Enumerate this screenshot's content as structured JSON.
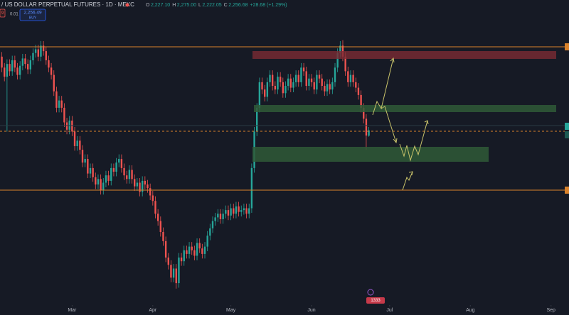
{
  "header": {
    "title": "/ US DOLLAR PERPETUAL FUTURES · 1D · MEXC",
    "ohlc": [
      {
        "label": "O",
        "value": "2,227.10"
      },
      {
        "label": "H",
        "value": "2,275.00"
      },
      {
        "label": "L",
        "value": "2,222.05"
      },
      {
        "label": "C",
        "value": "2,256.68"
      }
    ],
    "change": "+28.68 (+1.29%)"
  },
  "trade_panel": {
    "sell_badge": "9",
    "quantity": "0.01",
    "buy_price": "2,256.49",
    "buy_label": "BUY"
  },
  "footer_badge": "1333",
  "chart_data": {
    "type": "candlestick",
    "up_color": "#26a69a",
    "down_color": "#ef5350",
    "x": [
      1,
      2,
      3,
      4,
      5,
      6,
      7,
      8,
      9,
      10,
      11,
      12,
      13,
      14,
      15,
      16,
      17,
      18,
      19,
      20,
      21,
      22,
      23,
      24,
      25,
      26,
      27,
      28,
      29,
      30,
      31,
      32,
      33,
      34,
      35,
      36,
      37,
      38,
      39,
      40,
      41,
      42,
      43,
      44,
      45,
      46,
      47,
      48,
      49,
      50,
      51,
      52,
      53,
      54,
      55,
      56,
      57,
      58,
      59,
      60,
      61,
      62,
      63,
      64,
      65,
      66,
      67,
      68,
      69,
      70,
      71,
      72,
      73,
      74,
      75,
      76,
      77,
      78,
      79,
      80,
      81,
      82,
      83,
      84,
      85,
      86,
      87,
      88,
      89,
      90,
      91,
      92,
      93,
      94,
      95,
      96,
      97,
      98,
      99,
      100,
      101,
      102,
      103,
      104,
      105,
      106,
      107,
      108,
      109,
      110,
      111,
      112,
      113,
      114,
      115,
      116,
      117,
      118,
      119,
      120,
      121,
      122,
      123,
      124,
      125,
      126,
      127,
      128,
      129,
      130,
      131,
      132,
      133,
      134,
      135,
      136,
      137,
      138,
      139,
      140,
      141,
      142
    ],
    "open": [
      2660,
      2600,
      2550,
      2620,
      2580,
      2640,
      2600,
      2560,
      2610,
      2650,
      2620,
      2590,
      2640,
      2680,
      2700,
      2660,
      2720,
      2690,
      2640,
      2600,
      2560,
      2470,
      2380,
      2420,
      2380,
      2300,
      2260,
      2310,
      2250,
      2170,
      2200,
      2150,
      2080,
      2100,
      2020,
      2050,
      2000,
      1960,
      1990,
      1930,
      1970,
      2010,
      1980,
      2050,
      2030,
      2080,
      2100,
      2050,
      2010,
      1990,
      2040,
      1990,
      1950,
      1970,
      1920,
      1980,
      1960,
      1940,
      1900,
      1870,
      1800,
      1760,
      1700,
      1650,
      1560,
      1520,
      1450,
      1500,
      1420,
      1560,
      1540,
      1600,
      1580,
      1620,
      1600,
      1570,
      1640,
      1610,
      1580,
      1620,
      1680,
      1720,
      1760,
      1780,
      1800,
      1770,
      1800,
      1820,
      1790,
      1830,
      1800,
      1840,
      1810,
      1820,
      1830,
      1800,
      1830,
      2050,
      2250,
      2380,
      2520,
      2480,
      2440,
      2520,
      2560,
      2500,
      2480,
      2550,
      2520,
      2460,
      2500,
      2540,
      2490,
      2520,
      2560,
      2520,
      2600,
      2580,
      2500,
      2540,
      2520,
      2480,
      2560,
      2540,
      2500,
      2470,
      2510,
      2480,
      2520,
      2600,
      2680,
      2720,
      2660,
      2580,
      2520,
      2560,
      2520,
      2490,
      2450,
      2380,
      2320,
      2227.1
    ],
    "high": [
      2685,
      2625,
      2645,
      2645,
      2665,
      2665,
      2625,
      2635,
      2675,
      2675,
      2645,
      2665,
      2705,
      2725,
      2725,
      2745,
      2745,
      2715,
      2665,
      2625,
      2585,
      2495,
      2445,
      2445,
      2405,
      2325,
      2335,
      2335,
      2275,
      2225,
      2225,
      2175,
      2125,
      2125,
      2075,
      2075,
      2025,
      2015,
      2015,
      1995,
      2035,
      2035,
      2075,
      2075,
      2105,
      2125,
      2125,
      2075,
      2035,
      2065,
      2065,
      2015,
      1995,
      1995,
      2005,
      2005,
      1985,
      1965,
      1925,
      1895,
      1825,
      1785,
      1725,
      1675,
      1585,
      1545,
      1525,
      1525,
      1585,
      1585,
      1625,
      1625,
      1645,
      1645,
      1625,
      1665,
      1665,
      1635,
      1645,
      1705,
      1745,
      1785,
      1805,
      1825,
      1825,
      1825,
      1845,
      1845,
      1855,
      1855,
      1865,
      1865,
      1845,
      1855,
      1855,
      1855,
      2075,
      2275,
      2405,
      2545,
      2545,
      2505,
      2545,
      2585,
      2585,
      2525,
      2575,
      2575,
      2545,
      2525,
      2565,
      2565,
      2545,
      2585,
      2585,
      2625,
      2625,
      2605,
      2565,
      2565,
      2545,
      2585,
      2585,
      2565,
      2525,
      2535,
      2535,
      2545,
      2625,
      2705,
      2745,
      2750,
      2685,
      2605,
      2585,
      2585,
      2545,
      2515,
      2475,
      2405,
      2345,
      2275
    ],
    "low": [
      2575,
      2525,
      2250,
      2555,
      2555,
      2575,
      2535,
      2535,
      2585,
      2595,
      2565,
      2565,
      2615,
      2655,
      2635,
      2635,
      2665,
      2615,
      2575,
      2535,
      2445,
      2355,
      2355,
      2355,
      2275,
      2235,
      2235,
      2225,
      2145,
      2145,
      2125,
      2055,
      2055,
      1995,
      1995,
      1975,
      1935,
      1935,
      1905,
      1905,
      1945,
      1955,
      1955,
      2005,
      2005,
      2055,
      2025,
      1985,
      1965,
      1965,
      1965,
      1925,
      1925,
      1895,
      1895,
      1935,
      1915,
      1875,
      1845,
      1775,
      1735,
      1675,
      1625,
      1535,
      1495,
      1425,
      1425,
      1390,
      1395,
      1515,
      1515,
      1555,
      1555,
      1575,
      1545,
      1545,
      1585,
      1555,
      1555,
      1595,
      1655,
      1695,
      1735,
      1755,
      1745,
      1745,
      1775,
      1765,
      1765,
      1775,
      1775,
      1785,
      1785,
      1795,
      1775,
      1775,
      1805,
      2025,
      2225,
      2355,
      2455,
      2415,
      2415,
      2495,
      2475,
      2455,
      2455,
      2495,
      2435,
      2435,
      2475,
      2465,
      2465,
      2495,
      2495,
      2495,
      2555,
      2475,
      2475,
      2495,
      2455,
      2455,
      2515,
      2475,
      2445,
      2445,
      2455,
      2455,
      2495,
      2575,
      2655,
      2635,
      2555,
      2495,
      2495,
      2495,
      2465,
      2425,
      2355,
      2295,
      2150,
      2222.05
    ],
    "close": [
      2600,
      2550,
      2620,
      2580,
      2640,
      2600,
      2560,
      2610,
      2650,
      2620,
      2590,
      2640,
      2680,
      2700,
      2660,
      2720,
      2690,
      2640,
      2600,
      2560,
      2470,
      2380,
      2420,
      2380,
      2300,
      2260,
      2310,
      2250,
      2170,
      2200,
      2150,
      2080,
      2100,
      2020,
      2050,
      2000,
      1960,
      1990,
      1930,
      1970,
      2010,
      1980,
      2050,
      2030,
      2080,
      2100,
      2050,
      2010,
      1990,
      2040,
      1990,
      1950,
      1970,
      1920,
      1980,
      1960,
      1940,
      1900,
      1870,
      1800,
      1760,
      1700,
      1650,
      1560,
      1520,
      1450,
      1500,
      1420,
      1560,
      1540,
      1600,
      1580,
      1620,
      1600,
      1570,
      1640,
      1610,
      1580,
      1620,
      1680,
      1720,
      1760,
      1780,
      1800,
      1770,
      1800,
      1820,
      1790,
      1830,
      1800,
      1840,
      1810,
      1820,
      1830,
      1800,
      1830,
      2050,
      2250,
      2380,
      2520,
      2480,
      2440,
      2520,
      2560,
      2500,
      2480,
      2550,
      2520,
      2460,
      2500,
      2540,
      2490,
      2520,
      2560,
      2520,
      2600,
      2580,
      2500,
      2540,
      2520,
      2480,
      2560,
      2540,
      2500,
      2470,
      2510,
      2480,
      2520,
      2600,
      2680,
      2720,
      2660,
      2580,
      2520,
      2560,
      2520,
      2490,
      2450,
      2380,
      2320,
      2228,
      2256.68
    ],
    "xlim": [
      0.3,
      218.9
    ],
    "ylim": [
      1300,
      2970
    ],
    "xticks": [
      {
        "value": 28,
        "label": "Mar"
      },
      {
        "value": 59,
        "label": "Apr"
      },
      {
        "value": 89,
        "label": "May"
      },
      {
        "value": 120,
        "label": "Jun"
      },
      {
        "value": 150,
        "label": "Jul"
      },
      {
        "value": 181,
        "label": "Aug"
      },
      {
        "value": 212,
        "label": "Sep"
      }
    ]
  }
}
